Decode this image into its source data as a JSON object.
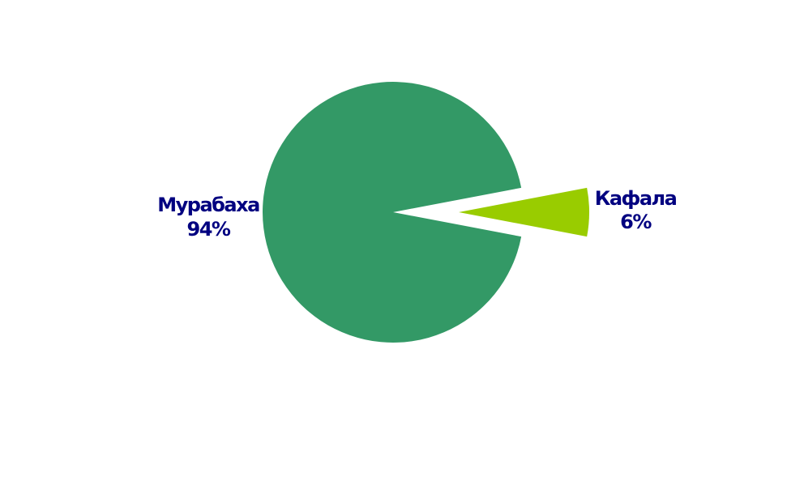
{
  "chart_data": {
    "type": "pie",
    "title": "",
    "slices": [
      {
        "label": "Мурабаха",
        "value": 94,
        "value_label": "94%",
        "color": "#339966",
        "exploded": false
      },
      {
        "label": "Кафала",
        "value": 6,
        "value_label": "6%",
        "color": "#99cc00",
        "exploded": true
      }
    ],
    "label_color": "#000080",
    "legend": "none"
  }
}
